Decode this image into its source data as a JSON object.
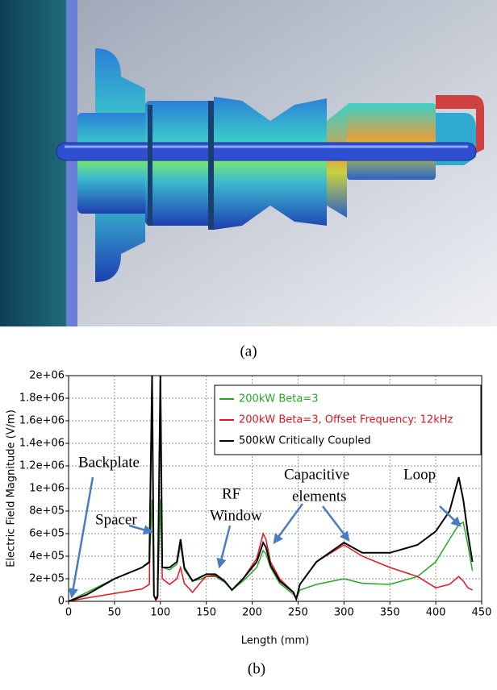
{
  "captions": {
    "a": "(a)",
    "b": "(b)"
  },
  "chart_data": {
    "type": "line",
    "xlabel": "Length (mm)",
    "ylabel": "Electric Field Magnitude (V/m)",
    "x": [
      0,
      20,
      50,
      80,
      88,
      91,
      93,
      95,
      97,
      100,
      102,
      110,
      118,
      122,
      126,
      135,
      145,
      150,
      160,
      170,
      178,
      190,
      205,
      212,
      215,
      220,
      230,
      245,
      248,
      252,
      270,
      300,
      320,
      350,
      380,
      400,
      415,
      425,
      430,
      435,
      440
    ],
    "series": [
      {
        "name": "200kW Beta=3",
        "color": "#22aa22",
        "values": [
          0,
          80000,
          200000,
          300000,
          340000,
          900000,
          50000,
          20000,
          50000,
          900000,
          300000,
          280000,
          330000,
          500000,
          280000,
          180000,
          200000,
          220000,
          220000,
          170000,
          100000,
          180000,
          300000,
          450000,
          420000,
          300000,
          160000,
          60000,
          20000,
          100000,
          150000,
          200000,
          160000,
          150000,
          220000,
          350000,
          550000,
          680000,
          700000,
          500000,
          270000
        ]
      },
      {
        "name": "200kW Beta=3, Offset Frequency: 12kHz",
        "color": "#e8141e",
        "values": [
          0,
          30000,
          70000,
          110000,
          150000,
          2000000,
          50000,
          10000,
          30000,
          2000000,
          200000,
          150000,
          200000,
          300000,
          160000,
          80000,
          180000,
          220000,
          230000,
          180000,
          100000,
          200000,
          380000,
          600000,
          550000,
          350000,
          200000,
          80000,
          20000,
          150000,
          350000,
          500000,
          400000,
          300000,
          220000,
          120000,
          150000,
          220000,
          180000,
          120000,
          100000
        ]
      },
      {
        "name": "500kW Critically Coupled",
        "color": "#000000",
        "values": [
          0,
          60000,
          200000,
          300000,
          350000,
          2000000,
          50000,
          20000,
          50000,
          2000000,
          300000,
          300000,
          350000,
          550000,
          300000,
          180000,
          220000,
          240000,
          240000,
          180000,
          100000,
          200000,
          350000,
          520000,
          480000,
          320000,
          180000,
          80000,
          20000,
          150000,
          350000,
          520000,
          430000,
          430000,
          500000,
          620000,
          800000,
          1100000,
          900000,
          600000,
          350000
        ]
      }
    ],
    "xlim": [
      0,
      450
    ],
    "xticks": [
      0,
      50,
      100,
      150,
      200,
      250,
      300,
      350,
      400,
      450
    ],
    "ylim": [
      0,
      2000000
    ],
    "yticks": [
      0,
      {
        "value": 200000,
        "label": "2e+05"
      },
      {
        "value": 400000,
        "label": "4e+05"
      },
      {
        "value": 600000,
        "label": "6e+05"
      },
      {
        "value": 800000,
        "label": "8e+05"
      },
      {
        "value": 1000000,
        "label": "1e+06"
      },
      {
        "value": 1200000,
        "label": "1.2e+06"
      },
      {
        "value": 1400000,
        "label": "1.4e+06"
      },
      {
        "value": 1600000,
        "label": "1.6e+06"
      },
      {
        "value": 1800000,
        "label": "1.8e+06"
      },
      {
        "value": 2000000,
        "label": "2e+06"
      }
    ],
    "grid": true,
    "legend": "upper right",
    "annotations": [
      [
        "Backplate"
      ],
      [
        "Spacer"
      ],
      [
        "RF",
        "Window"
      ],
      [
        "Capacitive",
        "elements"
      ],
      [
        "Loop"
      ]
    ]
  }
}
